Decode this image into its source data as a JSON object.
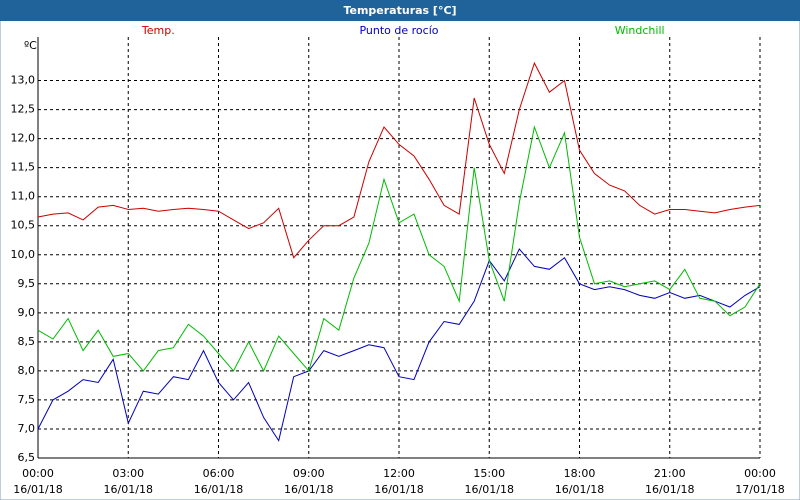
{
  "chart_data": {
    "type": "line",
    "title": "Temperaturas [°C]",
    "y_label": "ºC",
    "x": [
      0,
      0.5,
      1,
      1.5,
      2,
      2.5,
      3,
      3.5,
      4,
      4.5,
      5,
      5.5,
      6,
      6.5,
      7,
      7.5,
      8,
      8.5,
      9,
      9.5,
      10,
      10.5,
      11,
      11.5,
      12,
      12.5,
      13,
      13.5,
      14,
      14.5,
      15,
      15.5,
      16,
      16.5,
      17,
      17.5,
      18,
      18.5,
      19,
      19.5,
      20,
      20.5,
      21,
      21.5,
      22,
      22.5,
      23,
      23.5,
      24
    ],
    "series": [
      {
        "name": "Temp.",
        "color": "#cc0000",
        "values": [
          10.65,
          10.7,
          10.72,
          10.6,
          10.82,
          10.85,
          10.78,
          10.8,
          10.75,
          10.78,
          10.8,
          10.78,
          10.75,
          10.6,
          10.45,
          10.55,
          10.8,
          9.95,
          10.25,
          10.5,
          10.5,
          10.65,
          11.6,
          12.2,
          11.9,
          11.7,
          11.3,
          10.85,
          10.7,
          12.7,
          11.9,
          11.4,
          12.5,
          13.3,
          12.8,
          13.0,
          11.8,
          11.4,
          11.2,
          11.1,
          10.85,
          10.7,
          10.78,
          10.78,
          10.75,
          10.72,
          10.78,
          10.82,
          10.85
        ]
      },
      {
        "name": "Punto de rocío",
        "color": "#0000bb",
        "values": [
          7.0,
          7.5,
          7.65,
          7.85,
          7.8,
          8.2,
          7.1,
          7.65,
          7.6,
          7.9,
          7.85,
          8.35,
          7.8,
          7.5,
          7.8,
          7.2,
          6.8,
          7.9,
          8.0,
          8.35,
          8.25,
          8.35,
          8.45,
          8.4,
          7.9,
          7.85,
          8.5,
          8.85,
          8.8,
          9.2,
          9.9,
          9.55,
          10.1,
          9.8,
          9.75,
          9.95,
          9.5,
          9.4,
          9.45,
          9.4,
          9.3,
          9.25,
          9.35,
          9.25,
          9.3,
          9.2,
          9.1,
          9.3,
          9.45
        ]
      },
      {
        "name": "Windchill",
        "color": "#00bb00",
        "values": [
          8.7,
          8.55,
          8.9,
          8.35,
          8.7,
          8.25,
          8.3,
          8.0,
          8.35,
          8.4,
          8.8,
          8.6,
          8.3,
          8.0,
          8.5,
          8.0,
          8.6,
          8.3,
          8.0,
          8.9,
          8.7,
          9.6,
          10.2,
          11.3,
          10.55,
          10.7,
          10.0,
          9.8,
          9.2,
          11.5,
          9.9,
          9.2,
          10.9,
          12.2,
          11.5,
          12.1,
          10.3,
          9.5,
          9.55,
          9.45,
          9.5,
          9.55,
          9.4,
          9.75,
          9.25,
          9.2,
          8.95,
          9.1,
          9.5
        ]
      }
    ],
    "xlim": [
      0,
      24
    ],
    "xticks": [
      {
        "value": 0,
        "label": "00:00",
        "date": "16/01/18"
      },
      {
        "value": 3,
        "label": "03:00",
        "date": "16/01/18"
      },
      {
        "value": 6,
        "label": "06:00",
        "date": "16/01/18"
      },
      {
        "value": 9,
        "label": "09:00",
        "date": "16/01/18"
      },
      {
        "value": 12,
        "label": "12:00",
        "date": "16/01/18"
      },
      {
        "value": 15,
        "label": "15:00",
        "date": "16/01/18"
      },
      {
        "value": 18,
        "label": "18:00",
        "date": "16/01/18"
      },
      {
        "value": 21,
        "label": "21:00",
        "date": "16/01/18"
      },
      {
        "value": 24,
        "label": "00:00",
        "date": "17/01/18"
      }
    ],
    "ylim": [
      6.5,
      13.75
    ],
    "yticks": [
      {
        "value": 6.5,
        "label": "6,5"
      },
      {
        "value": 7,
        "label": "7,0"
      },
      {
        "value": 7.5,
        "label": "7,5"
      },
      {
        "value": 8,
        "label": "8,0"
      },
      {
        "value": 8.5,
        "label": "8,5"
      },
      {
        "value": 9,
        "label": "9,0"
      },
      {
        "value": 9.5,
        "label": "9,5"
      },
      {
        "value": 10,
        "label": "10,0"
      },
      {
        "value": 10.5,
        "label": "10,5"
      },
      {
        "value": 11,
        "label": "11,0"
      },
      {
        "value": 11.5,
        "label": "11,5"
      },
      {
        "value": 12,
        "label": "12,0"
      },
      {
        "value": 12.5,
        "label": "12,5"
      },
      {
        "value": 13,
        "label": "13,0"
      }
    ],
    "grid": true
  }
}
